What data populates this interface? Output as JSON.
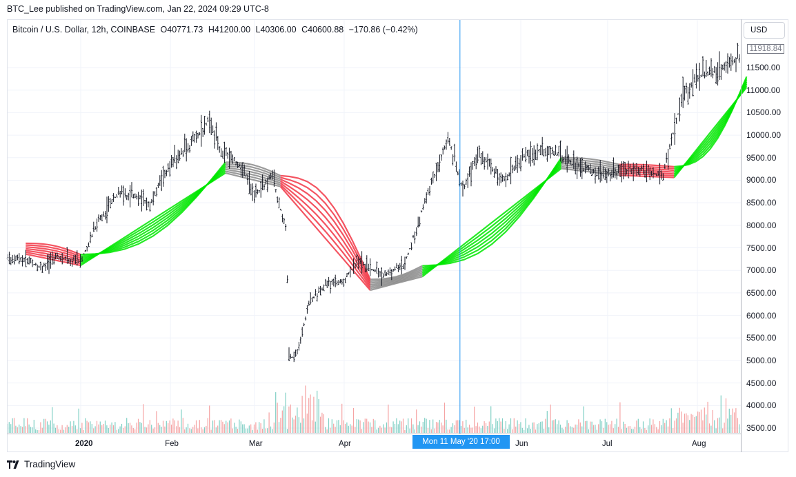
{
  "header": {
    "publish_line": "BTC_Lee published on TradingView.com, Jan 22, 2024 09:29 UTC-8"
  },
  "symbol": {
    "name": "Bitcoin / U.S. Dollar, 12h, COINBASE",
    "open": "O40771.73",
    "high": "H41200.00",
    "low": "L40306.00",
    "close": "C40600.88",
    "change": "−170.86 (−0.42%)"
  },
  "price_axis": {
    "currency_button": "USD",
    "last_price": "11918.84",
    "labels": [
      "11500.00",
      "11000.00",
      "10500.00",
      "10000.00",
      "9500.00",
      "9000.00",
      "8500.00",
      "8000.00",
      "7500.00",
      "7000.00",
      "6500.00",
      "6000.00",
      "5500.00",
      "5000.00",
      "4500.00",
      "4000.00",
      "3500.00"
    ]
  },
  "time_axis": {
    "labels": [
      "2020",
      "Feb",
      "Mar",
      "Apr",
      "Jun",
      "Jul",
      "Aug"
    ],
    "crosshair_label": "Mon 11 May '20   17:00"
  },
  "footer": {
    "brand": "TradingView"
  },
  "colors": {
    "bull": "#000000",
    "red_ribbon": "#f23645",
    "green_ribbon": "#00e600",
    "cyan_ribbon": "#5fe0ea",
    "orange_ribbon": "#f0a060",
    "gray_ribbon": "#8a8a8a",
    "crosshair": "#2196f3"
  },
  "chart_data": {
    "type": "line",
    "title": "Bitcoin / U.S. Dollar, 12h, COINBASE",
    "ylim": [
      3400,
      12300
    ],
    "y_scale": "linear",
    "close_path": {
      "dates": [
        "2019-12-13",
        "2019-12-18",
        "2019-12-23",
        "2020-01-01",
        "2020-01-07",
        "2020-01-14",
        "2020-01-19",
        "2020-01-25",
        "2020-02-01",
        "2020-02-08",
        "2020-02-14",
        "2020-02-19",
        "2020-02-26",
        "2020-03-01",
        "2020-03-07",
        "2020-03-12",
        "2020-03-13",
        "2020-03-16",
        "2020-03-20",
        "2020-03-26",
        "2020-04-01",
        "2020-04-06",
        "2020-04-14",
        "2020-04-22",
        "2020-04-30",
        "2020-05-07",
        "2020-05-12",
        "2020-05-18",
        "2020-05-26",
        "2020-06-01",
        "2020-06-10",
        "2020-06-20",
        "2020-06-30",
        "2020-07-10",
        "2020-07-20",
        "2020-07-27",
        "2020-08-01",
        "2020-08-10",
        "2020-08-17"
      ],
      "values": [
        7250,
        7050,
        7300,
        7200,
        8100,
        8700,
        8650,
        8500,
        9350,
        9800,
        10300,
        9600,
        9300,
        8600,
        9100,
        7900,
        5000,
        5200,
        6300,
        6700,
        6800,
        7200,
        6900,
        7150,
        8750,
        9900,
        8800,
        9600,
        8950,
        9500,
        9700,
        9300,
        9150,
        9250,
        9100,
        10900,
        11300,
        11550,
        11800
      ]
    },
    "ribbons": [
      {
        "name": "",
        "segments": [
          {
            "from": "2019-12-13",
            "to": "2020-01-01",
            "color": "red_ribbon",
            "start": 7500,
            "end": 7250
          },
          {
            "from": "2020-01-01",
            "to": "2020-02-20",
            "color": "green_ribbon",
            "start": 7250,
            "end": 9300
          },
          {
            "from": "2020-02-20",
            "to": "2020-03-10",
            "color": "gray_ribbon",
            "start": 9300,
            "end": 9000
          },
          {
            "from": "2020-03-10",
            "to": "2020-04-10",
            "color": "red_ribbon",
            "start": 9000,
            "end": 6700
          },
          {
            "from": "2020-04-10",
            "to": "2020-04-28",
            "color": "gray_ribbon",
            "start": 6700,
            "end": 7000
          },
          {
            "from": "2020-04-28",
            "to": "2020-06-15",
            "color": "green_ribbon",
            "start": 7000,
            "end": 9400
          },
          {
            "from": "2020-06-15",
            "to": "2020-07-05",
            "color": "gray_ribbon",
            "start": 9400,
            "end": 9250
          },
          {
            "from": "2020-07-05",
            "to": "2020-07-24",
            "color": "red_ribbon",
            "start": 9250,
            "end": 9200
          },
          {
            "from": "2020-07-24",
            "to": "2020-08-18",
            "color": "green_ribbon",
            "start": 9200,
            "end": 11200
          }
        ]
      }
    ],
    "crosshair_date": "2020-05-11"
  }
}
